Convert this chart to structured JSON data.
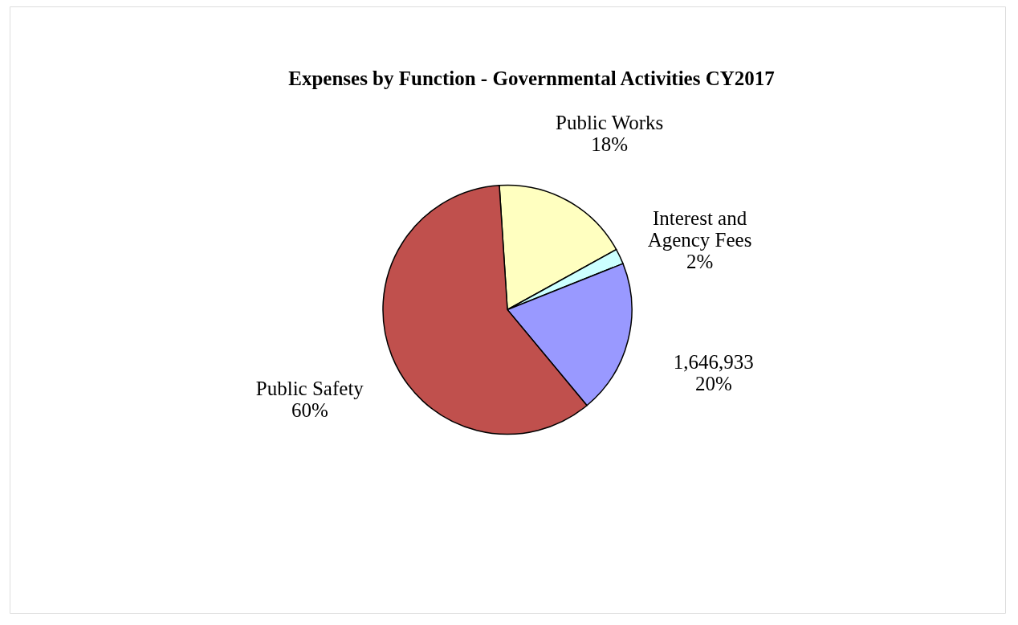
{
  "chart_data": {
    "type": "pie",
    "title": "Expenses by Function - Governmental Activities CY2017",
    "categories": [
      "Public Works",
      "Interest and Agency Fees",
      "1,646,933",
      "Public Safety"
    ],
    "values": [
      18,
      2,
      20,
      60
    ],
    "colors": [
      "#ffffc0",
      "#ccffff",
      "#9999ff",
      "#c0504d"
    ],
    "value_labels": [
      "18%",
      "2%",
      "20%",
      "60%"
    ]
  }
}
